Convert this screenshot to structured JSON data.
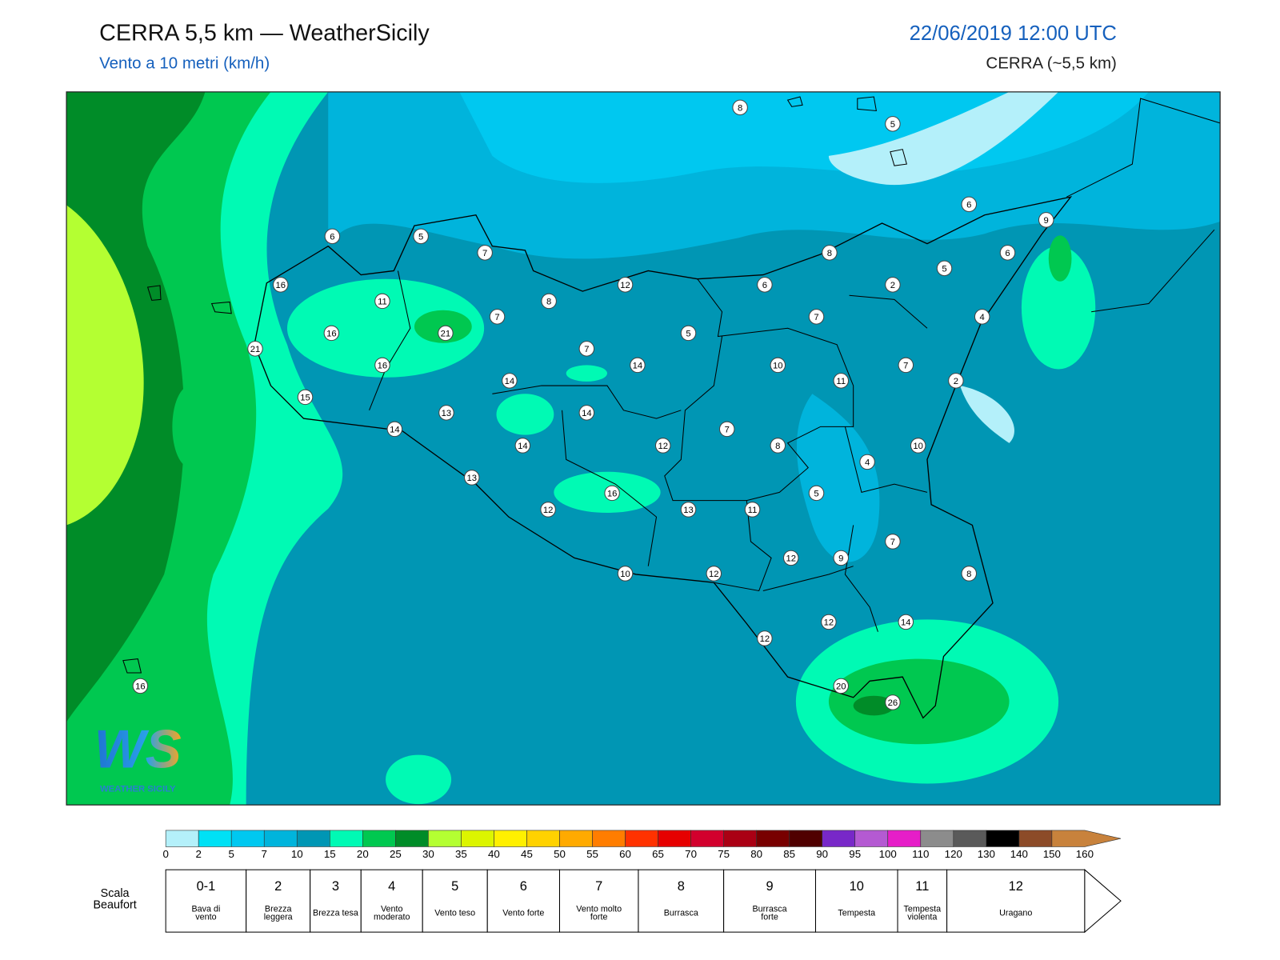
{
  "header": {
    "title": "CERRA 5,5 km — WeatherSicily",
    "subtitle": "Vento a 10 metri (km/h)",
    "datetime": "22/06/2019 12:00 UTC",
    "source": "CERRA (~5,5 km)"
  },
  "map": {
    "stations": [
      8,
      5,
      6,
      9,
      6,
      5,
      7,
      8,
      6,
      5,
      16,
      12,
      6,
      2,
      11,
      8,
      7,
      7,
      4,
      16,
      21,
      5,
      21,
      7,
      14,
      16,
      10,
      7,
      14,
      11,
      2,
      15,
      13,
      14,
      14,
      7,
      14,
      12,
      8,
      10,
      4,
      13,
      16,
      5,
      12,
      13,
      11,
      7,
      12,
      9,
      10,
      12,
      8,
      12,
      14,
      12,
      16,
      20,
      26
    ]
  },
  "logo": {
    "mark": "WS",
    "text": "WEATHER SICILY"
  },
  "legend": {
    "ticks": [
      0,
      2,
      5,
      7,
      10,
      15,
      20,
      25,
      30,
      35,
      40,
      45,
      50,
      55,
      60,
      65,
      70,
      75,
      80,
      85,
      90,
      95,
      100,
      110,
      120,
      130,
      140,
      150,
      160
    ],
    "colors": [
      "#b4f0fa",
      "#00e1f5",
      "#00c8f0",
      "#00b4dc",
      "#0096b4",
      "#00fab4",
      "#00c850",
      "#008c28",
      "#b4ff32",
      "#dcf500",
      "#fff000",
      "#ffd200",
      "#ffaa00",
      "#ff7d00",
      "#ff3200",
      "#e60000",
      "#d2002d",
      "#aa0014",
      "#780000",
      "#500000",
      "#7828c8",
      "#b45ad2",
      "#e61ec8",
      "#8c8c8c",
      "#5a5a5a",
      "#000000",
      "#8c4b28",
      "#c8823c"
    ]
  },
  "beaufort": {
    "title": "Scala Beaufort",
    "levels": [
      {
        "force": "0-1",
        "label": "Bava di vento"
      },
      {
        "force": "2",
        "label": "Brezza leggera"
      },
      {
        "force": "3",
        "label": "Brezza tesa"
      },
      {
        "force": "4",
        "label": "Vento moderato"
      },
      {
        "force": "5",
        "label": "Vento teso"
      },
      {
        "force": "6",
        "label": "Vento forte"
      },
      {
        "force": "7",
        "label": "Vento molto forte"
      },
      {
        "force": "8",
        "label": "Burrasca"
      },
      {
        "force": "9",
        "label": "Burrasca forte"
      },
      {
        "force": "10",
        "label": "Tempesta"
      },
      {
        "force": "11",
        "label": "Tempesta violenta"
      },
      {
        "force": "12",
        "label": "Uragano"
      }
    ]
  }
}
